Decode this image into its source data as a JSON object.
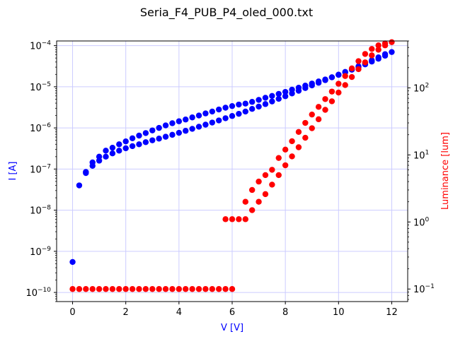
{
  "chart_data": {
    "type": "scatter",
    "title": "Seria_F4_PUB_P4_oled_000.txt",
    "xlabel": "V [V]",
    "ylabel_left": "I [A]",
    "ylabel_right": "Luminance [lum]",
    "xlim": [
      -0.6,
      12.6
    ],
    "ylim_left": [
      6e-11,
      0.00013
    ],
    "ylim_right": [
      0.065,
      500
    ],
    "y_scale": "log",
    "grid": true,
    "x_ticks": [
      {
        "value": 0,
        "label": "0"
      },
      {
        "value": 2,
        "label": "2"
      },
      {
        "value": 4,
        "label": "4"
      },
      {
        "value": 6,
        "label": "6"
      },
      {
        "value": 8,
        "label": "8"
      },
      {
        "value": 10,
        "label": "10"
      },
      {
        "value": 12,
        "label": "12"
      }
    ],
    "left_ticks": [
      {
        "exp": -10,
        "base": "10",
        "power": "−10"
      },
      {
        "exp": -9,
        "base": "10",
        "power": "−9"
      },
      {
        "exp": -8,
        "base": "10",
        "power": "−8"
      },
      {
        "exp": -7,
        "base": "10",
        "power": "−7"
      },
      {
        "exp": -6,
        "base": "10",
        "power": "−6"
      },
      {
        "exp": -5,
        "base": "10",
        "power": "−5"
      },
      {
        "exp": -4,
        "base": "10",
        "power": "−4"
      }
    ],
    "right_ticks": [
      {
        "exp": -1,
        "base": "10",
        "power": "−1"
      },
      {
        "exp": 0,
        "base": "10",
        "power": "0"
      },
      {
        "exp": 1,
        "base": "10",
        "power": "1"
      },
      {
        "exp": 2,
        "base": "10",
        "power": "2"
      }
    ],
    "colors": {
      "current": "#0000ff",
      "luminance": "#ff0000",
      "grid": "#ccccff",
      "left_label": "#0000ff",
      "right_label": "#ff0000"
    },
    "series": [
      {
        "axis": "left",
        "color": "#0000ff",
        "x": [
          0,
          0.25,
          0.5,
          0.75,
          1,
          1.25,
          1.5,
          1.75,
          2,
          2.25,
          2.5,
          2.75,
          3,
          3.25,
          3.5,
          3.75,
          4,
          4.25,
          4.5,
          4.75,
          5,
          5.25,
          5.5,
          5.75,
          6,
          6.25,
          6.5,
          6.75,
          7,
          7.25,
          7.5,
          7.75,
          8,
          8.25,
          8.5,
          8.75,
          9,
          9.25,
          9.5,
          9.75,
          10,
          10.25,
          10.5,
          10.75,
          11,
          11.25,
          11.5,
          11.75,
          12,
          11.75,
          11.5,
          11.25,
          11,
          10.75,
          10.5,
          10.25,
          10,
          9.75,
          9.5,
          9.25,
          9,
          8.75,
          8.5,
          8.25,
          8,
          7.75,
          7.5,
          7.25,
          7,
          6.75,
          6.5,
          6.25,
          6,
          5.75,
          5.5,
          5.25,
          5,
          4.75,
          4.5,
          4.25,
          4,
          3.75,
          3.5,
          3.25,
          3,
          2.75,
          2.5,
          2.25,
          2,
          1.75,
          1.5,
          1.25,
          1,
          0.75,
          0.5
        ],
        "y": [
          5.5e-10,
          4e-08,
          8.5e-08,
          1.45e-07,
          2e-07,
          2.8e-07,
          3.3e-07,
          4e-07,
          4.7e-07,
          5.6e-07,
          6.5e-07,
          7.5e-07,
          8.7e-07,
          1e-06,
          1.15e-06,
          1.3e-06,
          1.45e-06,
          1.6e-06,
          1.8e-06,
          2e-06,
          2.25e-06,
          2.5e-06,
          2.8e-06,
          3.1e-06,
          3.4e-06,
          3.7e-06,
          3.9e-06,
          4.3e-06,
          4.8e-06,
          5.4e-06,
          6e-06,
          6.7e-06,
          7.5e-06,
          8.5e-06,
          9.5e-06,
          1.07e-05,
          1.2e-05,
          1.35e-05,
          1.5e-05,
          1.7e-05,
          1.95e-05,
          2.25e-05,
          2.6e-05,
          3e-05,
          3.5e-05,
          4.1e-05,
          4.8e-05,
          5.7e-05,
          7e-05,
          6.2e-05,
          5.2e-05,
          4.4e-05,
          3.7e-05,
          3.15e-05,
          2.7e-05,
          2.3e-05,
          1.97e-05,
          1.7e-05,
          1.45e-05,
          1.25e-05,
          1.08e-05,
          9.3e-06,
          8e-06,
          6.9e-06,
          5.9e-06,
          5.1e-06,
          4.4e-06,
          3.8e-06,
          3.3e-06,
          2.9e-06,
          2.5e-06,
          2.2e-06,
          1.95e-06,
          1.72e-06,
          1.52e-06,
          1.35e-06,
          1.2e-06,
          1.07e-06,
          9.5e-07,
          8.5e-07,
          7.6e-07,
          6.8e-07,
          6.1e-07,
          5.5e-07,
          5e-07,
          4.5e-07,
          4e-07,
          3.6e-07,
          3.2e-07,
          2.8e-07,
          2.4e-07,
          2e-07,
          1.6e-07,
          1.2e-07,
          8e-08
        ]
      },
      {
        "axis": "right",
        "color": "#ff0000",
        "x": [
          0,
          0.25,
          0.5,
          0.75,
          1,
          1.25,
          1.5,
          1.75,
          2,
          2.25,
          2.5,
          2.75,
          3,
          3.25,
          3.5,
          3.75,
          4,
          4.25,
          4.5,
          4.75,
          5,
          5.25,
          5.5,
          5.75,
          6,
          5.75,
          6,
          6.25,
          6.5,
          6.75,
          7,
          7.25,
          7.5,
          7.75,
          8,
          8.25,
          8.5,
          8.75,
          9,
          9.25,
          9.5,
          9.75,
          10,
          10.25,
          10.5,
          10.75,
          11,
          11.25,
          11.5,
          11.75,
          12,
          11.75,
          11.5,
          11.25,
          11,
          10.75,
          10.5,
          10.25,
          10,
          9.75,
          9.5,
          9.25,
          9,
          8.75,
          8.5,
          8.25,
          8,
          7.75,
          7.5,
          7.25,
          7,
          6.75,
          6.5
        ],
        "y": [
          0.1,
          0.1,
          0.1,
          0.1,
          0.1,
          0.1,
          0.1,
          0.1,
          0.1,
          0.1,
          0.1,
          0.1,
          0.1,
          0.1,
          0.1,
          0.1,
          0.1,
          0.1,
          0.1,
          0.1,
          0.1,
          0.1,
          0.1,
          0.1,
          0.1,
          1.1,
          1.1,
          1.1,
          2.0,
          3.0,
          4.0,
          5.0,
          6.0,
          9.0,
          12.0,
          16.0,
          22.0,
          30.0,
          40.0,
          52.0,
          68.0,
          88.0,
          115.0,
          150.0,
          195.0,
          250.0,
          320.0,
          380.0,
          430.0,
          460.0,
          480.0,
          430.0,
          370.0,
          305.0,
          240.0,
          190.0,
          145.0,
          110.0,
          85.0,
          63.0,
          47.0,
          34.0,
          25.0,
          18.0,
          13.0,
          9.5,
          7.0,
          5.0,
          3.6,
          2.6,
          2.0,
          1.5,
          1.1
        ]
      }
    ]
  }
}
